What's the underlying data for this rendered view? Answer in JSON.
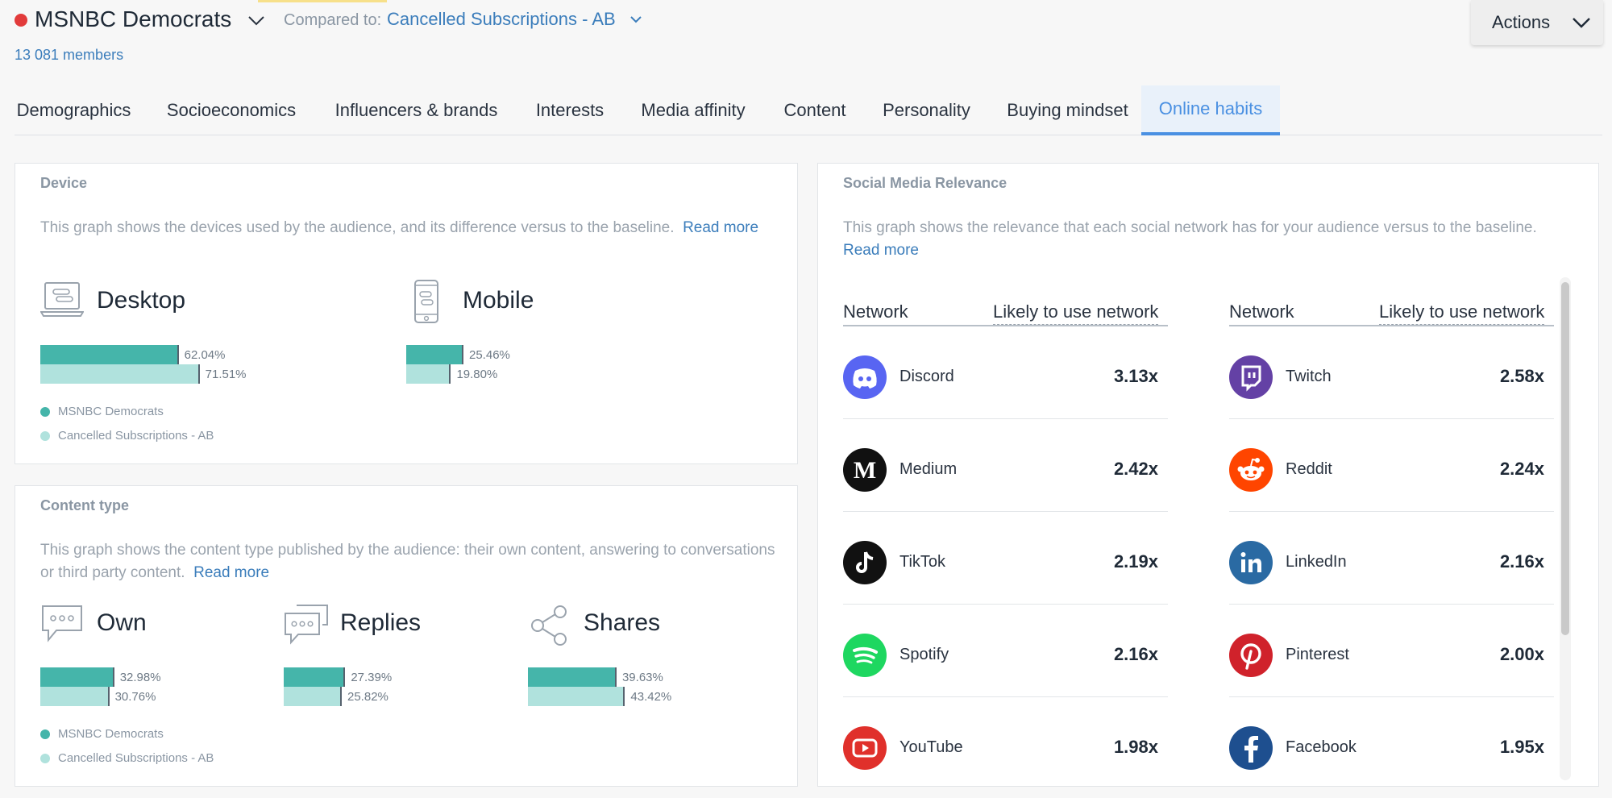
{
  "header": {
    "segment_name": "MSNBC Democrats",
    "compared_label": "Compared to:",
    "compared_value": "Cancelled Subscriptions - AB",
    "members": "13 081 members",
    "actions_label": "Actions"
  },
  "colors": {
    "segment_dot": "#e23b3b",
    "accent": "#4a90e2",
    "bar_primary": "#45b5aa",
    "bar_baseline": "#b0e2dd"
  },
  "tabs": [
    "Demographics",
    "Socioeconomics",
    "Influencers & brands",
    "Interests",
    "Media affinity",
    "Content",
    "Personality",
    "Buying mindset",
    "Online habits"
  ],
  "active_tab": "Online habits",
  "device": {
    "title": "Device",
    "description": "This graph shows the devices used by the audience, and its difference versus to the baseline.",
    "read_more": "Read more",
    "items": [
      {
        "label": "Desktop",
        "icon": "laptop-icon",
        "primary": "62.04%",
        "baseline": "71.51%",
        "primary_value": 62.04,
        "baseline_value": 71.51
      },
      {
        "label": "Mobile",
        "icon": "smartphone-icon",
        "primary": "25.46%",
        "baseline": "19.80%",
        "primary_value": 25.46,
        "baseline_value": 19.8
      }
    ],
    "legend": [
      "MSNBC Democrats",
      "Cancelled Subscriptions - AB"
    ]
  },
  "content_type": {
    "title": "Content type",
    "description": "This graph shows the content type published by the audience: their own content, answering to conversations or third party content.",
    "read_more": "Read more",
    "items": [
      {
        "label": "Own",
        "icon": "speech-bubble-icon",
        "primary": "32.98%",
        "baseline": "30.76%",
        "primary_value": 32.98,
        "baseline_value": 30.76
      },
      {
        "label": "Replies",
        "icon": "conversation-icon",
        "primary": "27.39%",
        "baseline": "25.82%",
        "primary_value": 27.39,
        "baseline_value": 25.82
      },
      {
        "label": "Shares",
        "icon": "share-icon",
        "primary": "39.63%",
        "baseline": "43.42%",
        "primary_value": 39.63,
        "baseline_value": 43.42
      }
    ],
    "legend": [
      "MSNBC Democrats",
      "Cancelled Subscriptions - AB"
    ]
  },
  "social": {
    "title": "Social Media Relevance",
    "description": "This graph shows the relevance that each social network has for your audience versus to the baseline.",
    "read_more": "Read more",
    "col_network": "Network",
    "col_likely": "Likely to use network",
    "left": [
      {
        "name": "Discord",
        "value": "3.13x",
        "color": "#5865f2",
        "icon": "discord-icon"
      },
      {
        "name": "Medium",
        "value": "2.42x",
        "color": "#111111",
        "icon": "medium-icon"
      },
      {
        "name": "TikTok",
        "value": "2.19x",
        "color": "#111111",
        "icon": "tiktok-icon"
      },
      {
        "name": "Spotify",
        "value": "2.16x",
        "color": "#1ed760",
        "icon": "spotify-icon"
      },
      {
        "name": "YouTube",
        "value": "1.98x",
        "color": "#e0302b",
        "icon": "youtube-icon"
      }
    ],
    "right": [
      {
        "name": "Twitch",
        "value": "2.58x",
        "color": "#6441a5",
        "icon": "twitch-icon"
      },
      {
        "name": "Reddit",
        "value": "2.24x",
        "color": "#ff4500",
        "icon": "reddit-icon"
      },
      {
        "name": "LinkedIn",
        "value": "2.16x",
        "color": "#2a6aa3",
        "icon": "linkedin-icon"
      },
      {
        "name": "Pinterest",
        "value": "2.00x",
        "color": "#d0222b",
        "icon": "pinterest-icon"
      },
      {
        "name": "Facebook",
        "value": "1.95x",
        "color": "#1e4f8f",
        "icon": "facebook-icon"
      }
    ]
  }
}
